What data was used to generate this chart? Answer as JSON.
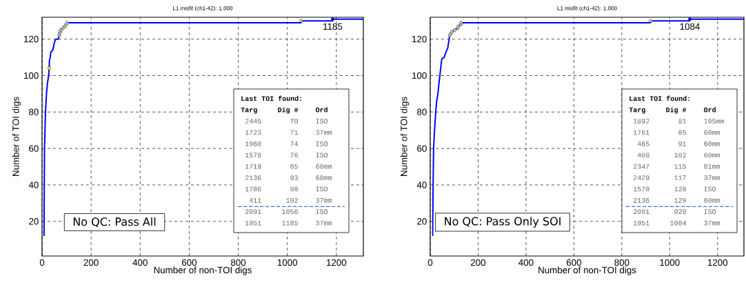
{
  "chart_data": [
    {
      "type": "line",
      "title": "L1 misfit (ch1-42): 1.000",
      "xlabel": "Number of non-TOI digs",
      "ylabel": "Number of TOI digs",
      "xlim": [
        0,
        1310
      ],
      "ylim": [
        1,
        132
      ],
      "xticks": [
        0,
        200,
        400,
        600,
        800,
        1000,
        1200
      ],
      "yticks": [
        20,
        40,
        60,
        80,
        100,
        120
      ],
      "grid": true,
      "series": [
        {
          "color": "#0000ff",
          "marker": "none",
          "x": [
            8,
            9,
            10,
            12,
            14,
            18,
            22,
            27,
            29,
            30,
            33,
            36,
            44,
            50,
            56,
            66,
            70,
            71,
            74,
            76,
            85,
            93,
            98,
            102,
            1056,
            1056,
            1185,
            1185,
            1310
          ],
          "values": [
            12,
            40,
            60,
            70,
            80,
            90,
            96,
            100,
            104,
            108,
            110,
            113,
            114,
            118,
            120,
            120,
            122,
            123,
            124,
            125,
            126,
            127,
            128,
            129,
            129,
            130,
            130,
            131,
            131
          ]
        },
        {
          "type": "scatter",
          "color": "#d0d0d0",
          "marker": "circle",
          "x": [
            70,
            71,
            74,
            76,
            85,
            93,
            98,
            102,
            1056
          ],
          "values": [
            122,
            123,
            124,
            125,
            126,
            127,
            128,
            129,
            130
          ]
        },
        {
          "type": "scatter",
          "color": "#ffff00",
          "marker": "circle",
          "x": [
            29
          ],
          "values": [
            104
          ]
        },
        {
          "type": "scatter",
          "color": "#0000ff",
          "marker": "circle",
          "x": [
            1185
          ],
          "values": [
            131
          ]
        }
      ],
      "annotations": [
        "No QC: Pass All",
        {
          "text": "1185",
          "x": 1185,
          "y": 131
        },
        "Last TOI found:",
        "Targ",
        "Dig #",
        "Ord",
        "2445",
        "70",
        "ISO",
        "1723",
        "71",
        "37mm",
        "1960",
        "74",
        "ISO",
        "1578",
        "76",
        "ISO",
        "1719",
        "85",
        "60mm",
        "2136",
        "93",
        "60mm",
        "1786",
        "98",
        "ISO",
        "411",
        "102",
        "37mm",
        "2091",
        "1056",
        "ISO",
        "1951",
        "1185",
        "37mm"
      ]
    },
    {
      "type": "line",
      "title": "L1 misfit (ch1-42): 1.000",
      "xlabel": "Number of non-TOI digs",
      "ylabel": "Number of TOI digs",
      "xlim": [
        0,
        1310
      ],
      "ylim": [
        1,
        132
      ],
      "xticks": [
        0,
        200,
        400,
        600,
        800,
        1000,
        1200
      ],
      "yticks": [
        20,
        40,
        60,
        80,
        100,
        120
      ],
      "grid": true,
      "series": [
        {
          "color": "#0000ff",
          "marker": "none",
          "x": [
            10,
            12,
            14,
            18,
            23,
            27,
            32,
            36,
            42,
            48,
            58,
            66,
            73,
            79,
            81,
            85,
            91,
            102,
            115,
            117,
            128,
            129,
            920,
            920,
            1084,
            1084,
            1310
          ],
          "values": [
            12,
            40,
            60,
            70,
            80,
            86,
            90,
            95,
            102,
            109,
            110,
            113,
            115,
            120,
            122,
            123,
            124,
            125,
            126,
            127,
            128,
            129,
            129,
            130,
            130,
            131,
            131
          ]
        },
        {
          "type": "scatter",
          "color": "#d0d0d0",
          "marker": "circle",
          "x": [
            81,
            85,
            91,
            102,
            115,
            117,
            128,
            129,
            920
          ],
          "values": [
            122,
            123,
            124,
            125,
            126,
            127,
            128,
            129,
            130
          ]
        },
        {
          "type": "scatter",
          "color": "#0000ff",
          "marker": "circle",
          "x": [
            1084
          ],
          "values": [
            131
          ]
        }
      ],
      "annotations": [
        "No QC: Pass Only SOI",
        {
          "text": "1084",
          "x": 1084,
          "y": 131
        },
        "Last TOI found:",
        "Targ",
        "Dig #",
        "Ord",
        "1892",
        "81",
        "105mm",
        "1761",
        "85",
        "60mm",
        "465",
        "91",
        "60mm",
        "408",
        "102",
        "60mm",
        "2347",
        "115",
        "81mm",
        "2429",
        "117",
        "37mm",
        "1578",
        "128",
        "ISO",
        "2136",
        "129",
        "60mm",
        "2091",
        "920",
        "ISO",
        "1951",
        "1084",
        "37mm"
      ]
    }
  ]
}
